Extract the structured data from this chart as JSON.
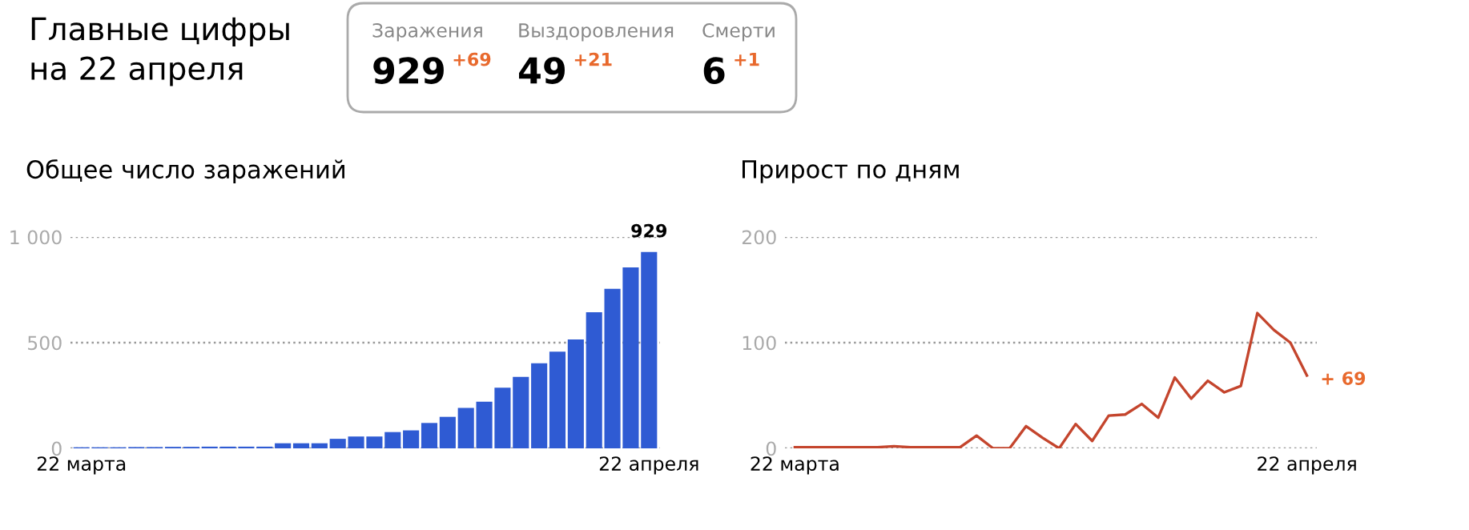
{
  "chart_data": [
    {
      "type": "other",
      "title": "Главные цифры\nна 22 апреля",
      "annotations": [
        "Заражения",
        "929",
        "+69",
        "Выздоровления",
        "49",
        "+21",
        "Смерти",
        "6",
        "+1"
      ]
    },
    {
      "type": "bar",
      "title": "Общее число заражений",
      "categories": [
        "22 марта",
        null,
        null,
        null,
        null,
        null,
        null,
        null,
        null,
        null,
        null,
        null,
        null,
        null,
        null,
        null,
        null,
        null,
        null,
        null,
        null,
        null,
        null,
        null,
        null,
        null,
        null,
        null,
        null,
        null,
        null,
        "22 апреля"
      ],
      "values": [
        5,
        5,
        5,
        6,
        6,
        7,
        7,
        8,
        8,
        8,
        8,
        24,
        24,
        24,
        45,
        56,
        56,
        77,
        85,
        120,
        149,
        191,
        221,
        287,
        338,
        402,
        457,
        515,
        644,
        755,
        856,
        929
      ],
      "value_labels": [
        null,
        null,
        null,
        null,
        null,
        null,
        null,
        null,
        null,
        null,
        null,
        null,
        null,
        null,
        null,
        null,
        null,
        null,
        null,
        null,
        null,
        null,
        null,
        null,
        null,
        null,
        null,
        null,
        null,
        null,
        null,
        "929"
      ],
      "color": "#2f5bd3",
      "ylim": [
        0,
        1000
      ],
      "yticks": [
        0,
        500,
        {
          "value": 1000,
          "label": "1 000"
        }
      ],
      "grid": "y"
    },
    {
      "type": "line",
      "title": "Прирост по дням",
      "categories": [
        "22 марта",
        null,
        null,
        null,
        null,
        null,
        null,
        null,
        null,
        null,
        null,
        null,
        null,
        null,
        null,
        null,
        null,
        null,
        null,
        null,
        null,
        null,
        null,
        null,
        null,
        null,
        null,
        null,
        null,
        null,
        null,
        "22 апреля"
      ],
      "values": [
        1,
        1,
        1,
        1,
        1,
        1,
        2,
        1,
        1,
        1,
        1,
        12,
        0,
        0,
        21,
        10,
        0,
        23,
        7,
        31,
        32,
        42,
        29,
        67,
        47,
        64,
        53,
        59,
        128,
        112,
        100,
        69
      ],
      "value_labels": [
        null,
        null,
        null,
        null,
        null,
        null,
        null,
        null,
        null,
        null,
        null,
        null,
        null,
        null,
        null,
        null,
        null,
        null,
        null,
        null,
        null,
        null,
        null,
        null,
        null,
        null,
        null,
        null,
        null,
        null,
        null,
        "+ 69"
      ],
      "color": "#c4452d",
      "ylim": [
        0,
        200
      ],
      "yticks": [
        0,
        100,
        200
      ],
      "grid": "y"
    }
  ]
}
